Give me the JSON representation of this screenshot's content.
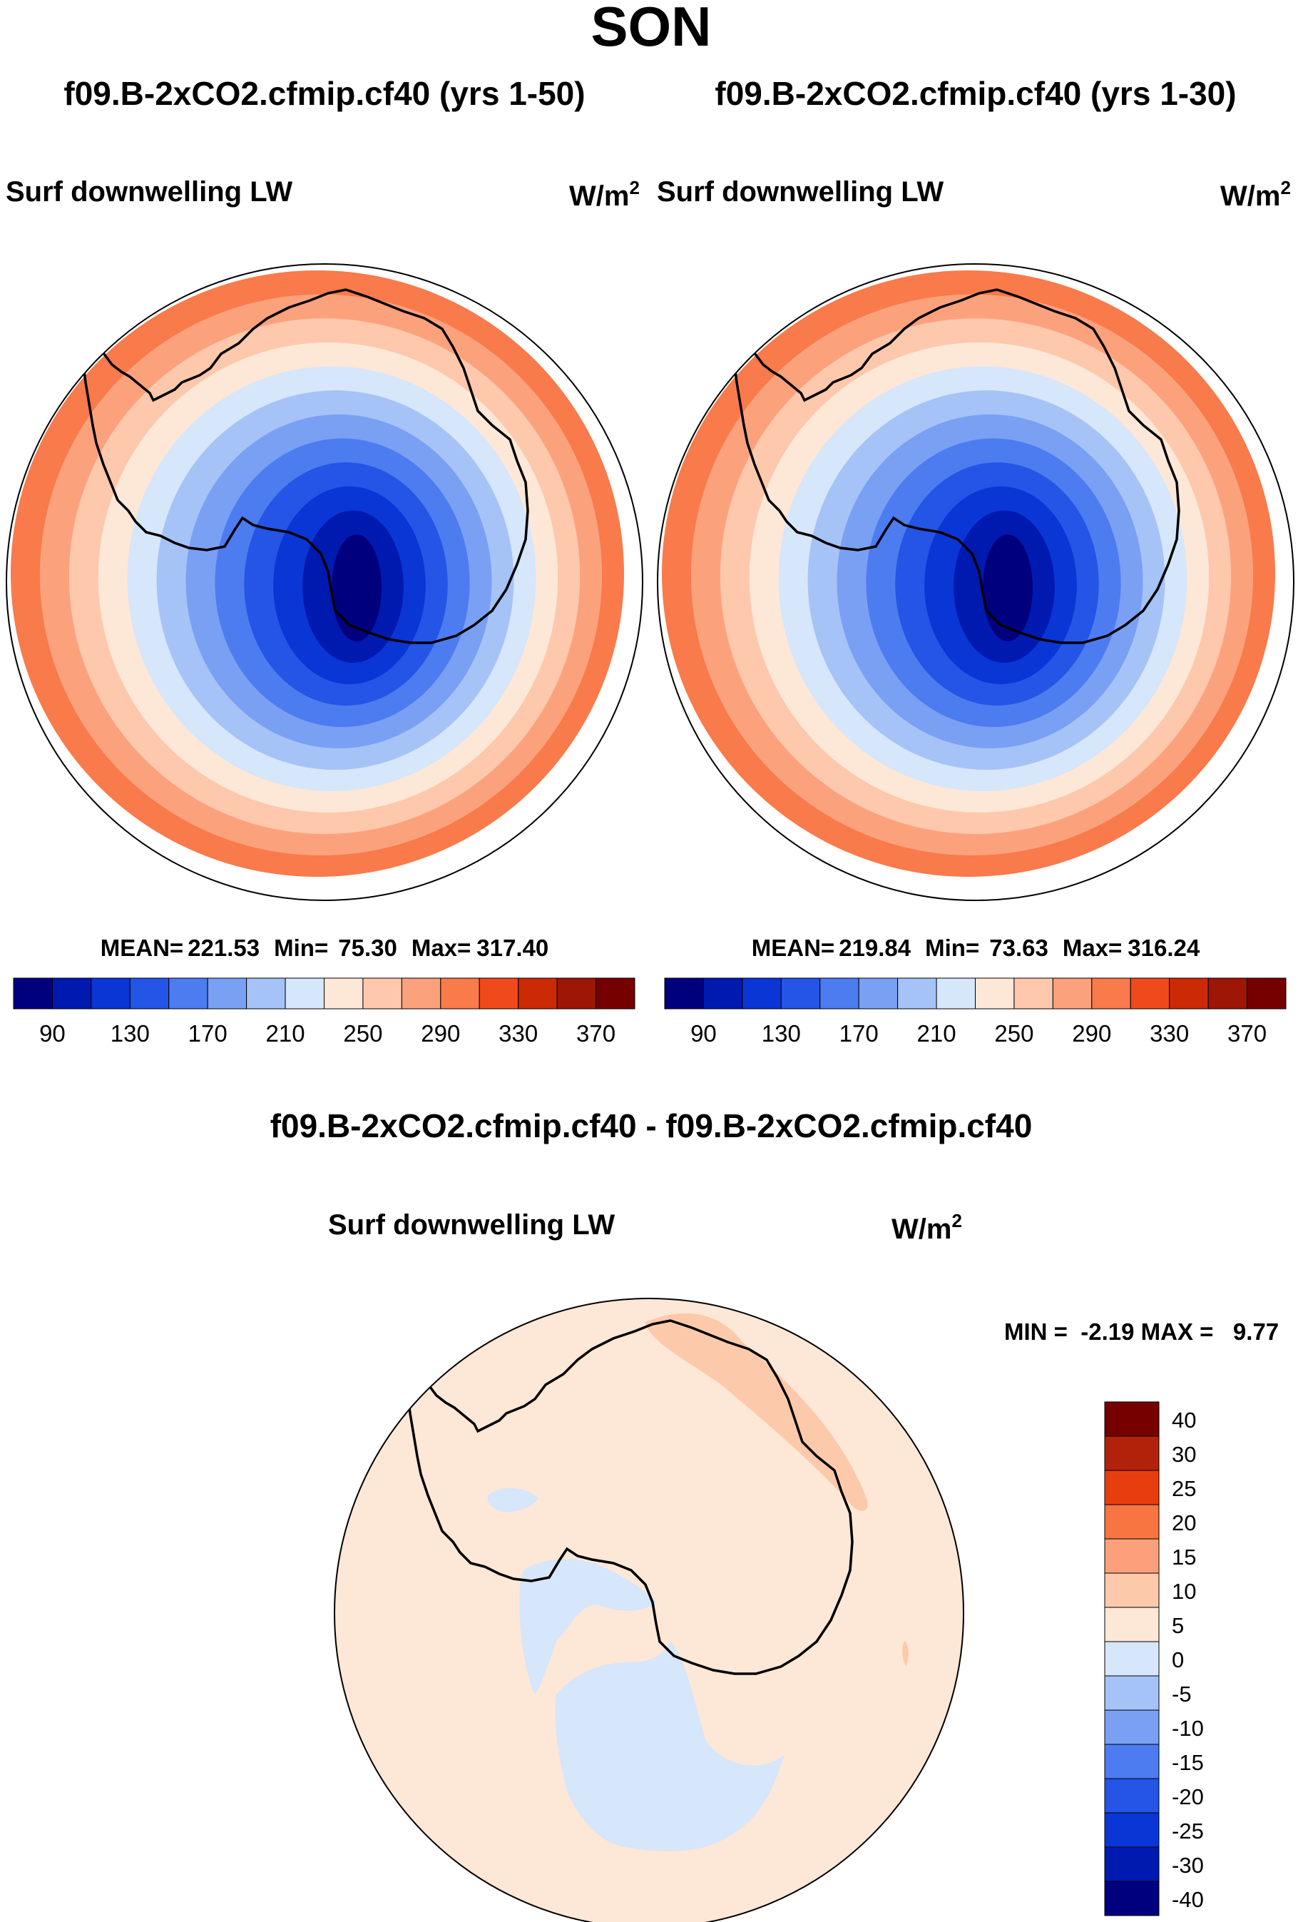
{
  "page": {
    "season": "SON"
  },
  "panels": [
    {
      "case_title": "f09.B-2xCO2.cfmip.cf40 (yrs 1-50)",
      "variable": "Surf downwelling LW",
      "units": "W/m",
      "units_exp": "2",
      "stats": {
        "mean_label": "MEAN=",
        "mean": "221.53",
        "min_label": "Min=",
        "min": "75.30",
        "max_label": "Max=",
        "max": "317.40"
      }
    },
    {
      "case_title": "f09.B-2xCO2.cfmip.cf40 (yrs 1-30)",
      "variable": "Surf downwelling LW",
      "units": "W/m",
      "units_exp": "2",
      "stats": {
        "mean_label": "MEAN=",
        "mean": "219.84",
        "min_label": "Min=",
        "min": "73.63",
        "max_label": "Max=",
        "max": "316.24"
      }
    }
  ],
  "abs_colorbar": {
    "colors": [
      "#00007f",
      "#001ab0",
      "#0a36d6",
      "#2455e6",
      "#4d7cf0",
      "#7aa0f4",
      "#a6c3f7",
      "#d6e6fb",
      "#fde7d6",
      "#fdc8ac",
      "#fba27d",
      "#f97a4b",
      "#f04a1c",
      "#cc2a07",
      "#9e1606",
      "#760000"
    ],
    "tick_labels": [
      "90",
      "130",
      "170",
      "210",
      "250",
      "290",
      "330",
      "370"
    ]
  },
  "diff_panel": {
    "title": "f09.B-2xCO2.cfmip.cf40 - f09.B-2xCO2.cfmip.cf40",
    "variable": "Surf downwelling LW",
    "units": "W/m",
    "units_exp": "2",
    "minmax": "MIN =  -2.19 MAX =   9.77",
    "colorbar": {
      "colors": [
        "#760000",
        "#b2220a",
        "#e83e0f",
        "#f87440",
        "#fba07a",
        "#fdc9ab",
        "#fde7d6",
        "#d6e6fb",
        "#a6c3f7",
        "#7aa0f4",
        "#4d7cf0",
        "#2455e6",
        "#0a36d6",
        "#001ab0",
        "#00007f"
      ],
      "tick_labels": [
        "40",
        "30",
        "25",
        "20",
        "15",
        "10",
        "5",
        "0",
        "-5",
        "-10",
        "-15",
        "-20",
        "-25",
        "-30",
        "-40"
      ]
    }
  },
  "map_colors": {
    "abs_rings": [
      "#f97a4b",
      "#fba27d",
      "#fdc8ac",
      "#fde7d6",
      "#d6e6fb",
      "#a6c3f7",
      "#7aa0f4",
      "#4d7cf0",
      "#2455e6",
      "#0a36d6",
      "#001ab0",
      "#00007f"
    ],
    "diff_bg": "#fde7d6",
    "diff_neg": "#d6e6fb",
    "diff_pos": "#fdc9ab"
  }
}
